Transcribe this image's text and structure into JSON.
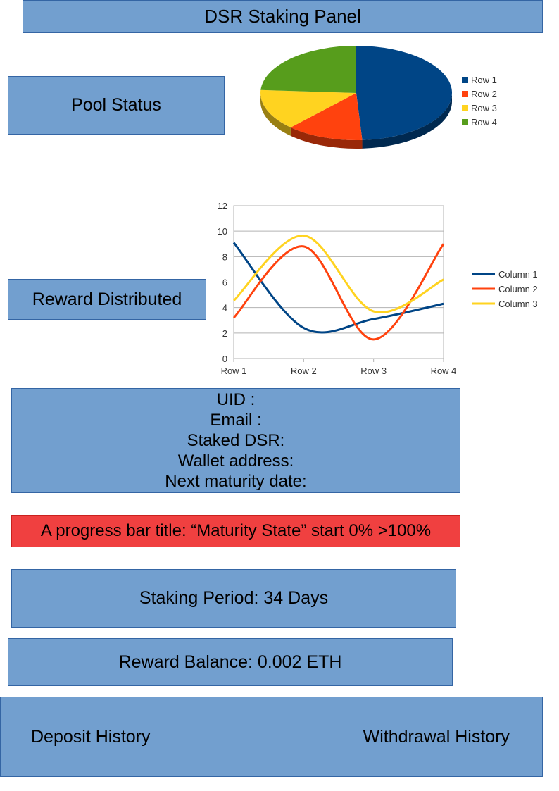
{
  "header": {
    "title": "DSR Staking Panel"
  },
  "pool": {
    "label": "Pool Status",
    "chart_data": {
      "type": "pie",
      "categories": [
        "Row 1",
        "Row 2",
        "Row 3",
        "Row 4"
      ],
      "values": [
        49,
        13,
        14,
        24
      ],
      "colors": [
        "#004586",
        "#ff420e",
        "#ffd320",
        "#579d1c"
      ],
      "legend": "right",
      "style": "3d"
    }
  },
  "reward": {
    "label": "Reward Distributed",
    "chart_data": {
      "type": "line",
      "categories": [
        "Row 1",
        "Row 2",
        "Row 3",
        "Row 4"
      ],
      "series": [
        {
          "name": "Column 1",
          "values": [
            9.1,
            2.4,
            3.1,
            4.3
          ],
          "color": "#004586"
        },
        {
          "name": "Column 2",
          "values": [
            3.2,
            8.8,
            1.5,
            9
          ],
          "color": "#ff420e"
        },
        {
          "name": "Column 3",
          "values": [
            4.54,
            9.65,
            3.7,
            6.2
          ],
          "color": "#ffd320"
        }
      ],
      "ylim": [
        0,
        12
      ],
      "yticks": [
        "0",
        "2",
        "4",
        "6",
        "8",
        "10",
        "12"
      ],
      "grid": true,
      "legend": "right",
      "smooth": true
    }
  },
  "user": {
    "uid_label": "UID :",
    "email_label": "Email :",
    "staked_label": "Staked DSR:",
    "wallet_label": "Wallet address:",
    "maturity_label": "Next maturity date:"
  },
  "progress": {
    "text": "A progress bar title: “Maturity State” start 0% >100%"
  },
  "period": {
    "text": "Staking Period: 34 Days"
  },
  "balance": {
    "text": "Reward Balance: 0.002 ETH"
  },
  "history": {
    "deposit_label": "Deposit History",
    "withdrawal_label": "Withdrawal History"
  }
}
